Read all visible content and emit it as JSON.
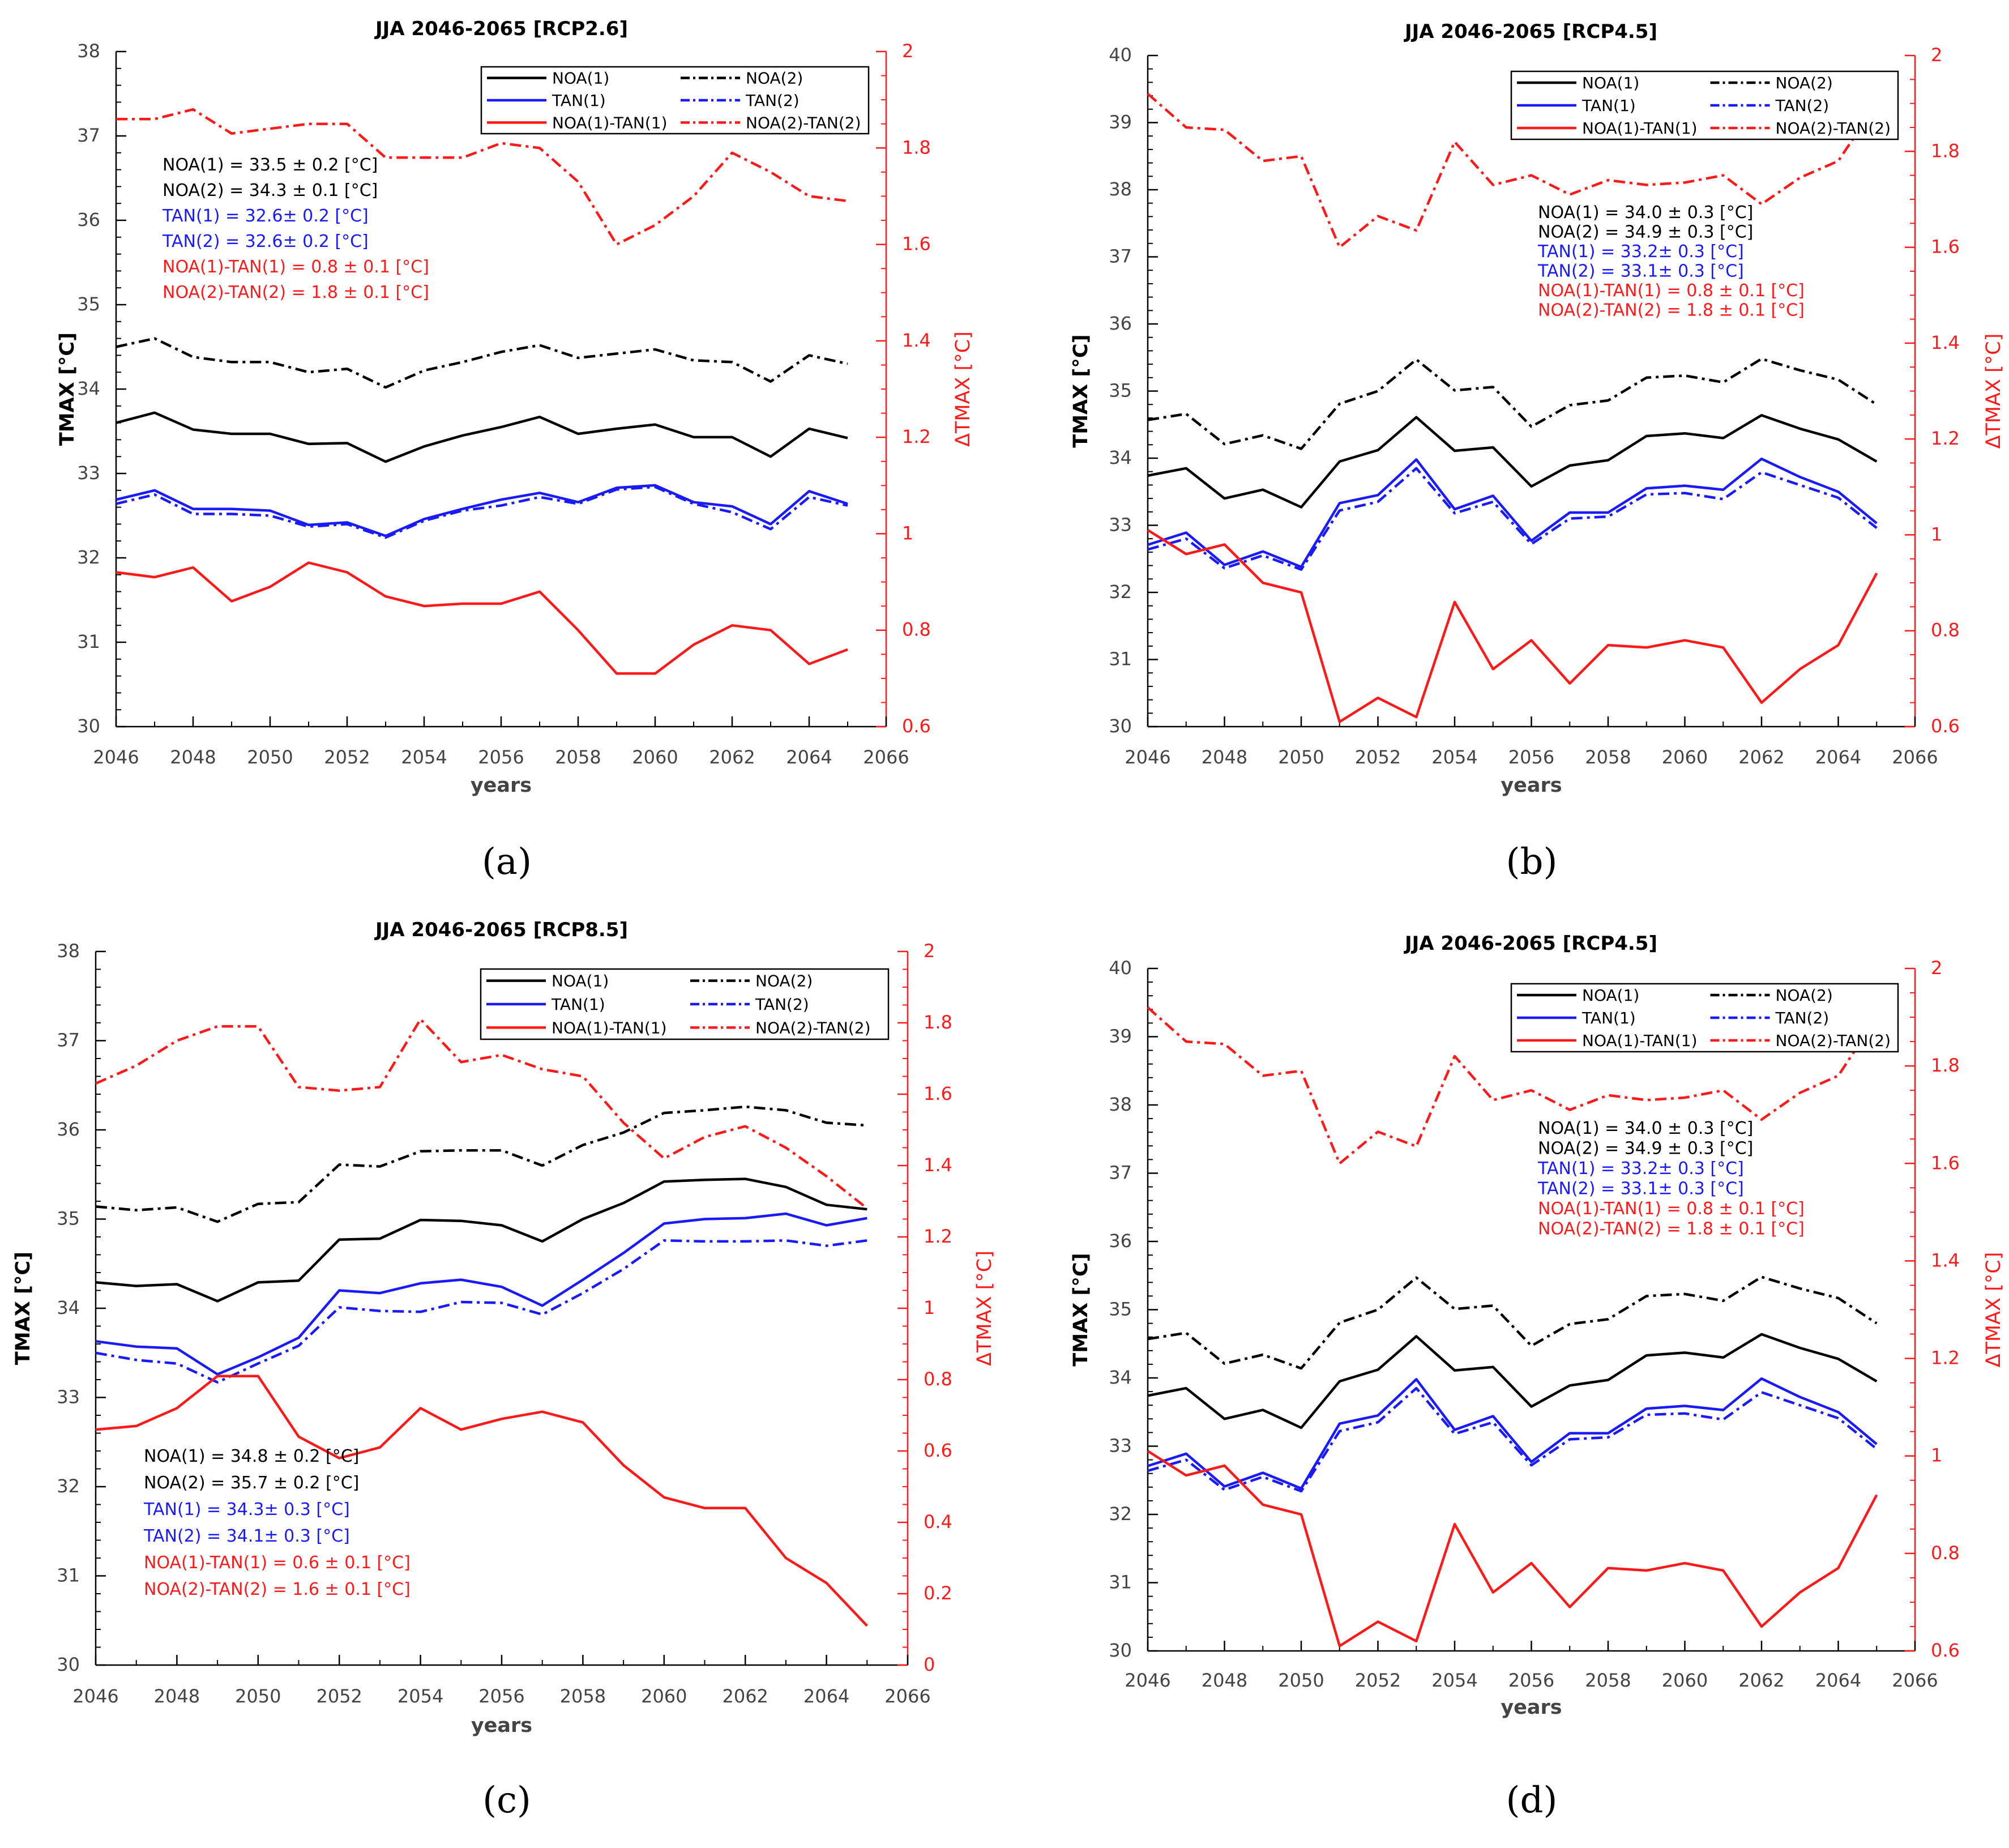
{
  "figure": {
    "panels_order": [
      "a",
      "b",
      "c",
      "d"
    ]
  },
  "colors": {
    "black": "#000000",
    "blue": "#1a1aff",
    "red": "#ff1a1a",
    "grid_text": "#444444"
  },
  "legend_labels": [
    "NOA(1)",
    "NOA(2)",
    "TAN(1)",
    "TAN(2)",
    "NOA(1)-TAN(1)",
    "NOA(2)-TAN(2)"
  ],
  "chart_data": [
    {
      "panel": "(a)",
      "type": "line",
      "title": "JJA 2046-2065 [RCP2.6]",
      "xlabel": "years",
      "ylabel": "TMAX [°C]",
      "ylabel_right": "ΔTMAX [°C]",
      "xlim": [
        2046,
        2066
      ],
      "ylim": [
        30,
        38
      ],
      "ylim_right": [
        0.6,
        2
      ],
      "xticks": [
        "2046",
        "2048",
        "2050",
        "2052",
        "2054",
        "2056",
        "2058",
        "2060",
        "2062",
        "2064",
        "2066"
      ],
      "yticks": [
        "30",
        "31",
        "32",
        "33",
        "34",
        "35",
        "36",
        "37",
        "38"
      ],
      "yticks_right": [
        "0.6",
        "0.8",
        "1",
        "1.2",
        "1.4",
        "1.6",
        "1.8",
        "2"
      ],
      "x": [
        2046,
        2047,
        2048,
        2049,
        2050,
        2051,
        2052,
        2053,
        2054,
        2055,
        2056,
        2057,
        2058,
        2059,
        2060,
        2061,
        2062,
        2063,
        2064,
        2065
      ],
      "series": [
        {
          "name": "NOA(1)",
          "axis": "left",
          "values": [
            33.6,
            33.72,
            33.52,
            33.47,
            33.47,
            33.35,
            33.36,
            33.14,
            33.32,
            33.45,
            33.55,
            33.67,
            33.47,
            33.53,
            33.58,
            33.43,
            33.43,
            33.2,
            33.53,
            33.42
          ]
        },
        {
          "name": "NOA(2)",
          "axis": "left",
          "values": [
            34.5,
            34.6,
            34.38,
            34.32,
            34.32,
            34.2,
            34.24,
            34.02,
            34.22,
            34.32,
            34.44,
            34.52,
            34.37,
            34.42,
            34.47,
            34.34,
            34.32,
            34.09,
            34.4,
            34.3
          ]
        },
        {
          "name": "TAN(1)",
          "axis": "left",
          "values": [
            32.69,
            32.8,
            32.58,
            32.58,
            32.56,
            32.39,
            32.42,
            32.26,
            32.46,
            32.58,
            32.69,
            32.77,
            32.66,
            32.83,
            32.86,
            32.66,
            32.61,
            32.4,
            32.79,
            32.64
          ]
        },
        {
          "name": "TAN(2)",
          "axis": "left",
          "values": [
            32.64,
            32.75,
            32.52,
            32.52,
            32.5,
            32.37,
            32.4,
            32.24,
            32.44,
            32.56,
            32.62,
            32.72,
            32.64,
            32.81,
            32.84,
            32.64,
            32.54,
            32.34,
            32.72,
            32.62
          ]
        },
        {
          "name": "NOA(1)-TAN(1)",
          "axis": "right",
          "values": [
            0.92,
            0.91,
            0.93,
            0.86,
            0.89,
            0.94,
            0.92,
            0.87,
            0.85,
            0.855,
            0.855,
            0.88,
            0.8,
            0.71,
            0.71,
            0.77,
            0.81,
            0.8,
            0.73,
            0.76
          ]
        },
        {
          "name": "NOA(2)-TAN(2)",
          "axis": "right",
          "values": [
            1.86,
            1.86,
            1.88,
            1.83,
            1.84,
            1.85,
            1.85,
            1.78,
            1.78,
            1.78,
            1.81,
            1.8,
            1.73,
            1.6,
            1.64,
            1.7,
            1.79,
            1.75,
            1.7,
            1.69
          ]
        }
      ],
      "annotations": [
        {
          "text": "NOA(1) = 33.5 ± 0.2 [°C]",
          "color": "black"
        },
        {
          "text": "NOA(2) = 34.3 ± 0.1 [°C]",
          "color": "black"
        },
        {
          "text": "TAN(1) = 32.6± 0.2 [°C]",
          "color": "blue"
        },
        {
          "text": "TAN(2) = 32.6± 0.2 [°C]",
          "color": "blue"
        },
        {
          "text": "NOA(1)-TAN(1) = 0.8 ± 0.1 [°C]",
          "color": "red"
        },
        {
          "text": "NOA(2)-TAN(2) = 1.8 ± 0.1 [°C]",
          "color": "red"
        }
      ]
    },
    {
      "panel": "(b)",
      "type": "line",
      "title": "JJA 2046-2065 [RCP4.5]",
      "xlabel": "years",
      "ylabel": "TMAX [°C]",
      "ylabel_right": "ΔTMAX [°C]",
      "xlim": [
        2046,
        2066
      ],
      "ylim": [
        30,
        40
      ],
      "ylim_right": [
        0.6,
        2
      ],
      "xticks": [
        "2046",
        "2048",
        "2050",
        "2052",
        "2054",
        "2056",
        "2058",
        "2060",
        "2062",
        "2064",
        "2066"
      ],
      "yticks": [
        "30",
        "31",
        "32",
        "33",
        "34",
        "35",
        "36",
        "37",
        "38",
        "39",
        "40"
      ],
      "yticks_right": [
        "0.6",
        "0.8",
        "1",
        "1.2",
        "1.4",
        "1.6",
        "1.8",
        "2"
      ],
      "x": [
        2046,
        2047,
        2048,
        2049,
        2050,
        2051,
        2052,
        2053,
        2054,
        2055,
        2056,
        2057,
        2058,
        2059,
        2060,
        2061,
        2062,
        2063,
        2064,
        2065
      ],
      "series": [
        {
          "name": "NOA(1)",
          "axis": "left",
          "values": [
            33.74,
            33.85,
            33.4,
            33.53,
            33.27,
            33.95,
            34.12,
            34.61,
            34.11,
            34.16,
            33.58,
            33.89,
            33.97,
            34.33,
            34.37,
            34.3,
            34.64,
            34.44,
            34.28,
            33.95
          ]
        },
        {
          "name": "NOA(2)",
          "axis": "left",
          "values": [
            34.57,
            34.66,
            34.21,
            34.34,
            34.14,
            34.81,
            35.0,
            35.47,
            35.01,
            35.06,
            34.47,
            34.79,
            34.86,
            35.2,
            35.23,
            35.13,
            35.48,
            35.31,
            35.17,
            34.8
          ]
        },
        {
          "name": "TAN(1)",
          "axis": "left",
          "values": [
            32.71,
            32.89,
            32.41,
            32.61,
            32.38,
            33.33,
            33.45,
            33.98,
            33.24,
            33.44,
            32.77,
            33.19,
            33.19,
            33.55,
            33.59,
            33.53,
            33.99,
            33.72,
            33.5,
            33.03
          ]
        },
        {
          "name": "TAN(2)",
          "axis": "left",
          "values": [
            32.64,
            32.8,
            32.36,
            32.55,
            32.34,
            33.22,
            33.35,
            33.85,
            33.18,
            33.35,
            32.72,
            33.1,
            33.13,
            33.46,
            33.48,
            33.39,
            33.79,
            33.6,
            33.41,
            32.96
          ]
        },
        {
          "name": "NOA(1)-TAN(1)",
          "axis": "right",
          "values": [
            1.01,
            0.96,
            0.98,
            0.9,
            0.88,
            0.61,
            0.66,
            0.62,
            0.86,
            0.72,
            0.78,
            0.69,
            0.77,
            0.765,
            0.78,
            0.765,
            0.65,
            0.72,
            0.77,
            0.92
          ]
        },
        {
          "name": "NOA(2)-TAN(2)",
          "axis": "right",
          "values": [
            1.92,
            1.85,
            1.845,
            1.78,
            1.79,
            1.6,
            1.665,
            1.635,
            1.82,
            1.73,
            1.75,
            1.71,
            1.74,
            1.73,
            1.735,
            1.75,
            1.69,
            1.745,
            1.78,
            1.9
          ]
        }
      ],
      "annotations": [
        {
          "text": "NOA(1) = 34.0 ± 0.3 [°C]",
          "color": "black"
        },
        {
          "text": "NOA(2) = 34.9 ± 0.3 [°C]",
          "color": "black"
        },
        {
          "text": "TAN(1) = 33.2± 0.3 [°C]",
          "color": "blue"
        },
        {
          "text": "TAN(2) = 33.1± 0.3 [°C]",
          "color": "blue"
        },
        {
          "text": "NOA(1)-TAN(1) = 0.8 ± 0.1 [°C]",
          "color": "red"
        },
        {
          "text": "NOA(2)-TAN(2) = 1.8 ± 0.1 [°C]",
          "color": "red"
        }
      ]
    },
    {
      "panel": "(c)",
      "type": "line",
      "title": "JJA 2046-2065 [RCP8.5]",
      "xlabel": "years",
      "ylabel": "TMAX [°C]",
      "ylabel_right": "ΔTMAX [°C]",
      "xlim": [
        2046,
        2066
      ],
      "ylim": [
        30,
        38
      ],
      "ylim_right": [
        0,
        2
      ],
      "xticks": [
        "2046",
        "2048",
        "2050",
        "2052",
        "2054",
        "2056",
        "2058",
        "2060",
        "2062",
        "2064",
        "2066"
      ],
      "yticks": [
        "30",
        "31",
        "32",
        "33",
        "34",
        "35",
        "36",
        "37",
        "38"
      ],
      "yticks_right": [
        "0",
        "0.2",
        "0.4",
        "0.6",
        "0.8",
        "1",
        "1.2",
        "1.4",
        "1.6",
        "1.8",
        "2"
      ],
      "x": [
        2046,
        2047,
        2048,
        2049,
        2050,
        2051,
        2052,
        2053,
        2054,
        2055,
        2056,
        2057,
        2058,
        2059,
        2060,
        2061,
        2062,
        2063,
        2064,
        2065
      ],
      "series": [
        {
          "name": "NOA(1)",
          "axis": "left",
          "values": [
            34.29,
            34.25,
            34.27,
            34.08,
            34.29,
            34.31,
            34.77,
            34.78,
            34.99,
            34.98,
            34.93,
            34.75,
            35.0,
            35.18,
            35.42,
            35.44,
            35.45,
            35.36,
            35.16,
            35.11
          ]
        },
        {
          "name": "NOA(2)",
          "axis": "left",
          "values": [
            35.14,
            35.1,
            35.13,
            34.97,
            35.17,
            35.19,
            35.61,
            35.59,
            35.76,
            35.77,
            35.77,
            35.6,
            35.83,
            35.97,
            36.19,
            36.22,
            36.26,
            36.22,
            36.08,
            36.05
          ]
        },
        {
          "name": "TAN(1)",
          "axis": "left",
          "values": [
            33.63,
            33.57,
            33.55,
            33.26,
            33.45,
            33.67,
            34.2,
            34.17,
            34.28,
            34.32,
            34.24,
            34.03,
            34.32,
            34.62,
            34.95,
            35.0,
            35.01,
            35.06,
            34.93,
            35.01
          ]
        },
        {
          "name": "TAN(2)",
          "axis": "left",
          "values": [
            33.5,
            33.42,
            33.38,
            33.17,
            33.38,
            33.58,
            34.01,
            33.97,
            33.96,
            34.07,
            34.06,
            33.93,
            34.17,
            34.44,
            34.76,
            34.75,
            34.75,
            34.76,
            34.7,
            34.76
          ]
        },
        {
          "name": "NOA(1)-TAN(1)",
          "axis": "right",
          "values": [
            0.66,
            0.67,
            0.72,
            0.81,
            0.81,
            0.64,
            0.58,
            0.61,
            0.72,
            0.66,
            0.69,
            0.71,
            0.68,
            0.56,
            0.47,
            0.44,
            0.44,
            0.3,
            0.23,
            0.11
          ]
        },
        {
          "name": "NOA(2)-TAN(2)",
          "axis": "right",
          "values": [
            1.63,
            1.68,
            1.75,
            1.79,
            1.79,
            1.62,
            1.61,
            1.62,
            1.81,
            1.69,
            1.71,
            1.67,
            1.65,
            1.52,
            1.42,
            1.48,
            1.51,
            1.45,
            1.37,
            1.28
          ]
        }
      ],
      "annotations": [
        {
          "text": "NOA(1) = 34.8 ± 0.2 [°C]",
          "color": "black"
        },
        {
          "text": "NOA(2) = 35.7 ± 0.2 [°C]",
          "color": "black"
        },
        {
          "text": "TAN(1) = 34.3± 0.3 [°C]",
          "color": "blue"
        },
        {
          "text": "TAN(2) = 34.1± 0.3 [°C]",
          "color": "blue"
        },
        {
          "text": "NOA(1)-TAN(1) = 0.6 ± 0.1 [°C]",
          "color": "red"
        },
        {
          "text": "NOA(2)-TAN(2) = 1.6 ± 0.1 [°C]",
          "color": "red"
        }
      ]
    },
    {
      "panel": "(d)",
      "type": "line",
      "title": "JJA 2046-2065 [RCP4.5]",
      "xlabel": "years",
      "ylabel": "TMAX [°C]",
      "ylabel_right": "ΔTMAX [°C]",
      "xlim": [
        2046,
        2066
      ],
      "ylim": [
        30,
        40
      ],
      "ylim_right": [
        0.6,
        2
      ],
      "xticks": [
        "2046",
        "2048",
        "2050",
        "2052",
        "2054",
        "2056",
        "2058",
        "2060",
        "2062",
        "2064",
        "2066"
      ],
      "yticks": [
        "30",
        "31",
        "32",
        "33",
        "34",
        "35",
        "36",
        "37",
        "38",
        "39",
        "40"
      ],
      "yticks_right": [
        "0.6",
        "0.8",
        "1",
        "1.2",
        "1.4",
        "1.6",
        "1.8",
        "2"
      ],
      "x": [
        2046,
        2047,
        2048,
        2049,
        2050,
        2051,
        2052,
        2053,
        2054,
        2055,
        2056,
        2057,
        2058,
        2059,
        2060,
        2061,
        2062,
        2063,
        2064,
        2065
      ],
      "series": [
        {
          "name": "NOA(1)",
          "axis": "left",
          "values": [
            33.74,
            33.85,
            33.4,
            33.53,
            33.27,
            33.95,
            34.12,
            34.61,
            34.11,
            34.16,
            33.58,
            33.89,
            33.97,
            34.33,
            34.37,
            34.3,
            34.64,
            34.44,
            34.28,
            33.95
          ]
        },
        {
          "name": "NOA(2)",
          "axis": "left",
          "values": [
            34.57,
            34.66,
            34.21,
            34.34,
            34.14,
            34.81,
            35.0,
            35.47,
            35.01,
            35.06,
            34.47,
            34.79,
            34.86,
            35.2,
            35.23,
            35.13,
            35.48,
            35.31,
            35.17,
            34.8
          ]
        },
        {
          "name": "TAN(1)",
          "axis": "left",
          "values": [
            32.71,
            32.89,
            32.41,
            32.61,
            32.38,
            33.33,
            33.45,
            33.98,
            33.24,
            33.44,
            32.77,
            33.19,
            33.19,
            33.55,
            33.59,
            33.53,
            33.99,
            33.72,
            33.5,
            33.03
          ]
        },
        {
          "name": "TAN(2)",
          "axis": "left",
          "values": [
            32.64,
            32.8,
            32.36,
            32.55,
            32.34,
            33.22,
            33.35,
            33.85,
            33.18,
            33.35,
            32.72,
            33.1,
            33.13,
            33.46,
            33.48,
            33.39,
            33.79,
            33.6,
            33.41,
            32.96
          ]
        },
        {
          "name": "NOA(1)-TAN(1)",
          "axis": "right",
          "values": [
            1.01,
            0.96,
            0.98,
            0.9,
            0.88,
            0.61,
            0.66,
            0.62,
            0.86,
            0.72,
            0.78,
            0.69,
            0.77,
            0.765,
            0.78,
            0.765,
            0.65,
            0.72,
            0.77,
            0.92
          ]
        },
        {
          "name": "NOA(2)-TAN(2)",
          "axis": "right",
          "values": [
            1.92,
            1.85,
            1.845,
            1.78,
            1.79,
            1.6,
            1.665,
            1.635,
            1.82,
            1.73,
            1.75,
            1.71,
            1.74,
            1.73,
            1.735,
            1.75,
            1.69,
            1.745,
            1.78,
            1.9
          ]
        }
      ],
      "annotations": [
        {
          "text": "NOA(1) = 34.0 ± 0.3 [°C]",
          "color": "black"
        },
        {
          "text": "NOA(2) = 34.9 ± 0.3 [°C]",
          "color": "black"
        },
        {
          "text": "TAN(1) = 33.2± 0.3 [°C]",
          "color": "blue"
        },
        {
          "text": "TAN(2) = 33.1± 0.3 [°C]",
          "color": "blue"
        },
        {
          "text": "NOA(1)-TAN(1) = 0.8 ± 0.1 [°C]",
          "color": "red"
        },
        {
          "text": "NOA(2)-TAN(2) = 1.8 ± 0.1 [°C]",
          "color": "red"
        }
      ]
    }
  ]
}
